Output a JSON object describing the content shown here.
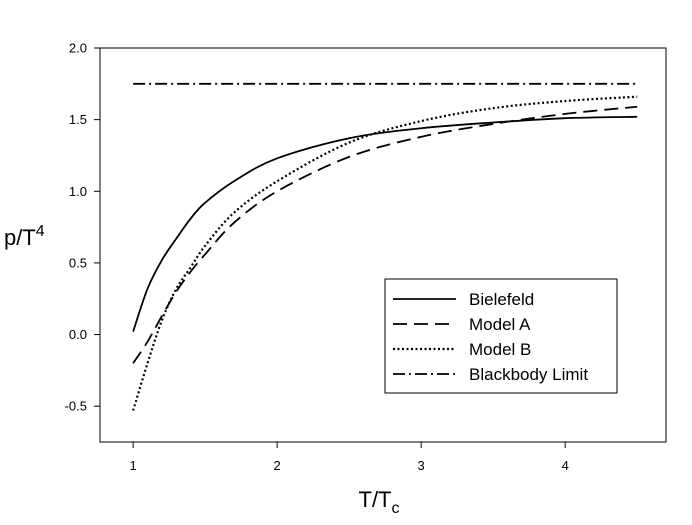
{
  "chart_data": {
    "type": "line",
    "title": "",
    "xlabel": "T/T",
    "xlabel_sub": "c",
    "ylabel": "p/T",
    "ylabel_sup": "4",
    "xlim": [
      0.77,
      4.7
    ],
    "ylim": [
      -0.75,
      2.0
    ],
    "xticks": [
      1,
      2,
      3,
      4
    ],
    "xtick_labels": [
      "1",
      "2",
      "3",
      "4"
    ],
    "yticks": [
      -0.5,
      0.0,
      0.5,
      1.0,
      1.5,
      2.0
    ],
    "ytick_labels": [
      "-0.5",
      "0.0",
      "0.5",
      "1.0",
      "1.5",
      "2.0"
    ],
    "grid": false,
    "legend_position": "lower-right",
    "series": [
      {
        "name": "Bielefeld",
        "style": "solid",
        "color": "#000000",
        "x": [
          1.0,
          1.1,
          1.2,
          1.3,
          1.4,
          1.5,
          1.7,
          2.0,
          2.5,
          3.0,
          3.5,
          4.0,
          4.5
        ],
        "y": [
          0.02,
          0.32,
          0.52,
          0.67,
          0.81,
          0.92,
          1.07,
          1.23,
          1.37,
          1.44,
          1.48,
          1.51,
          1.52
        ]
      },
      {
        "name": "Model A",
        "style": "dashed",
        "color": "#000000",
        "x": [
          1.0,
          1.1,
          1.2,
          1.3,
          1.4,
          1.5,
          1.7,
          2.0,
          2.5,
          3.0,
          3.5,
          4.0,
          4.5
        ],
        "y": [
          -0.2,
          -0.05,
          0.13,
          0.3,
          0.44,
          0.56,
          0.78,
          1.0,
          1.24,
          1.38,
          1.47,
          1.54,
          1.59
        ]
      },
      {
        "name": "Model B",
        "style": "dotted",
        "color": "#000000",
        "x": [
          1.0,
          1.1,
          1.2,
          1.3,
          1.4,
          1.5,
          1.7,
          2.0,
          2.5,
          3.0,
          3.5,
          4.0,
          4.5
        ],
        "y": [
          -0.53,
          -0.2,
          0.1,
          0.32,
          0.47,
          0.62,
          0.85,
          1.07,
          1.34,
          1.49,
          1.58,
          1.63,
          1.66
        ]
      },
      {
        "name": "Blackbody Limit",
        "style": "dashdot",
        "color": "#000000",
        "x": [
          1.0,
          4.5
        ],
        "y": [
          1.75,
          1.75
        ]
      }
    ]
  }
}
